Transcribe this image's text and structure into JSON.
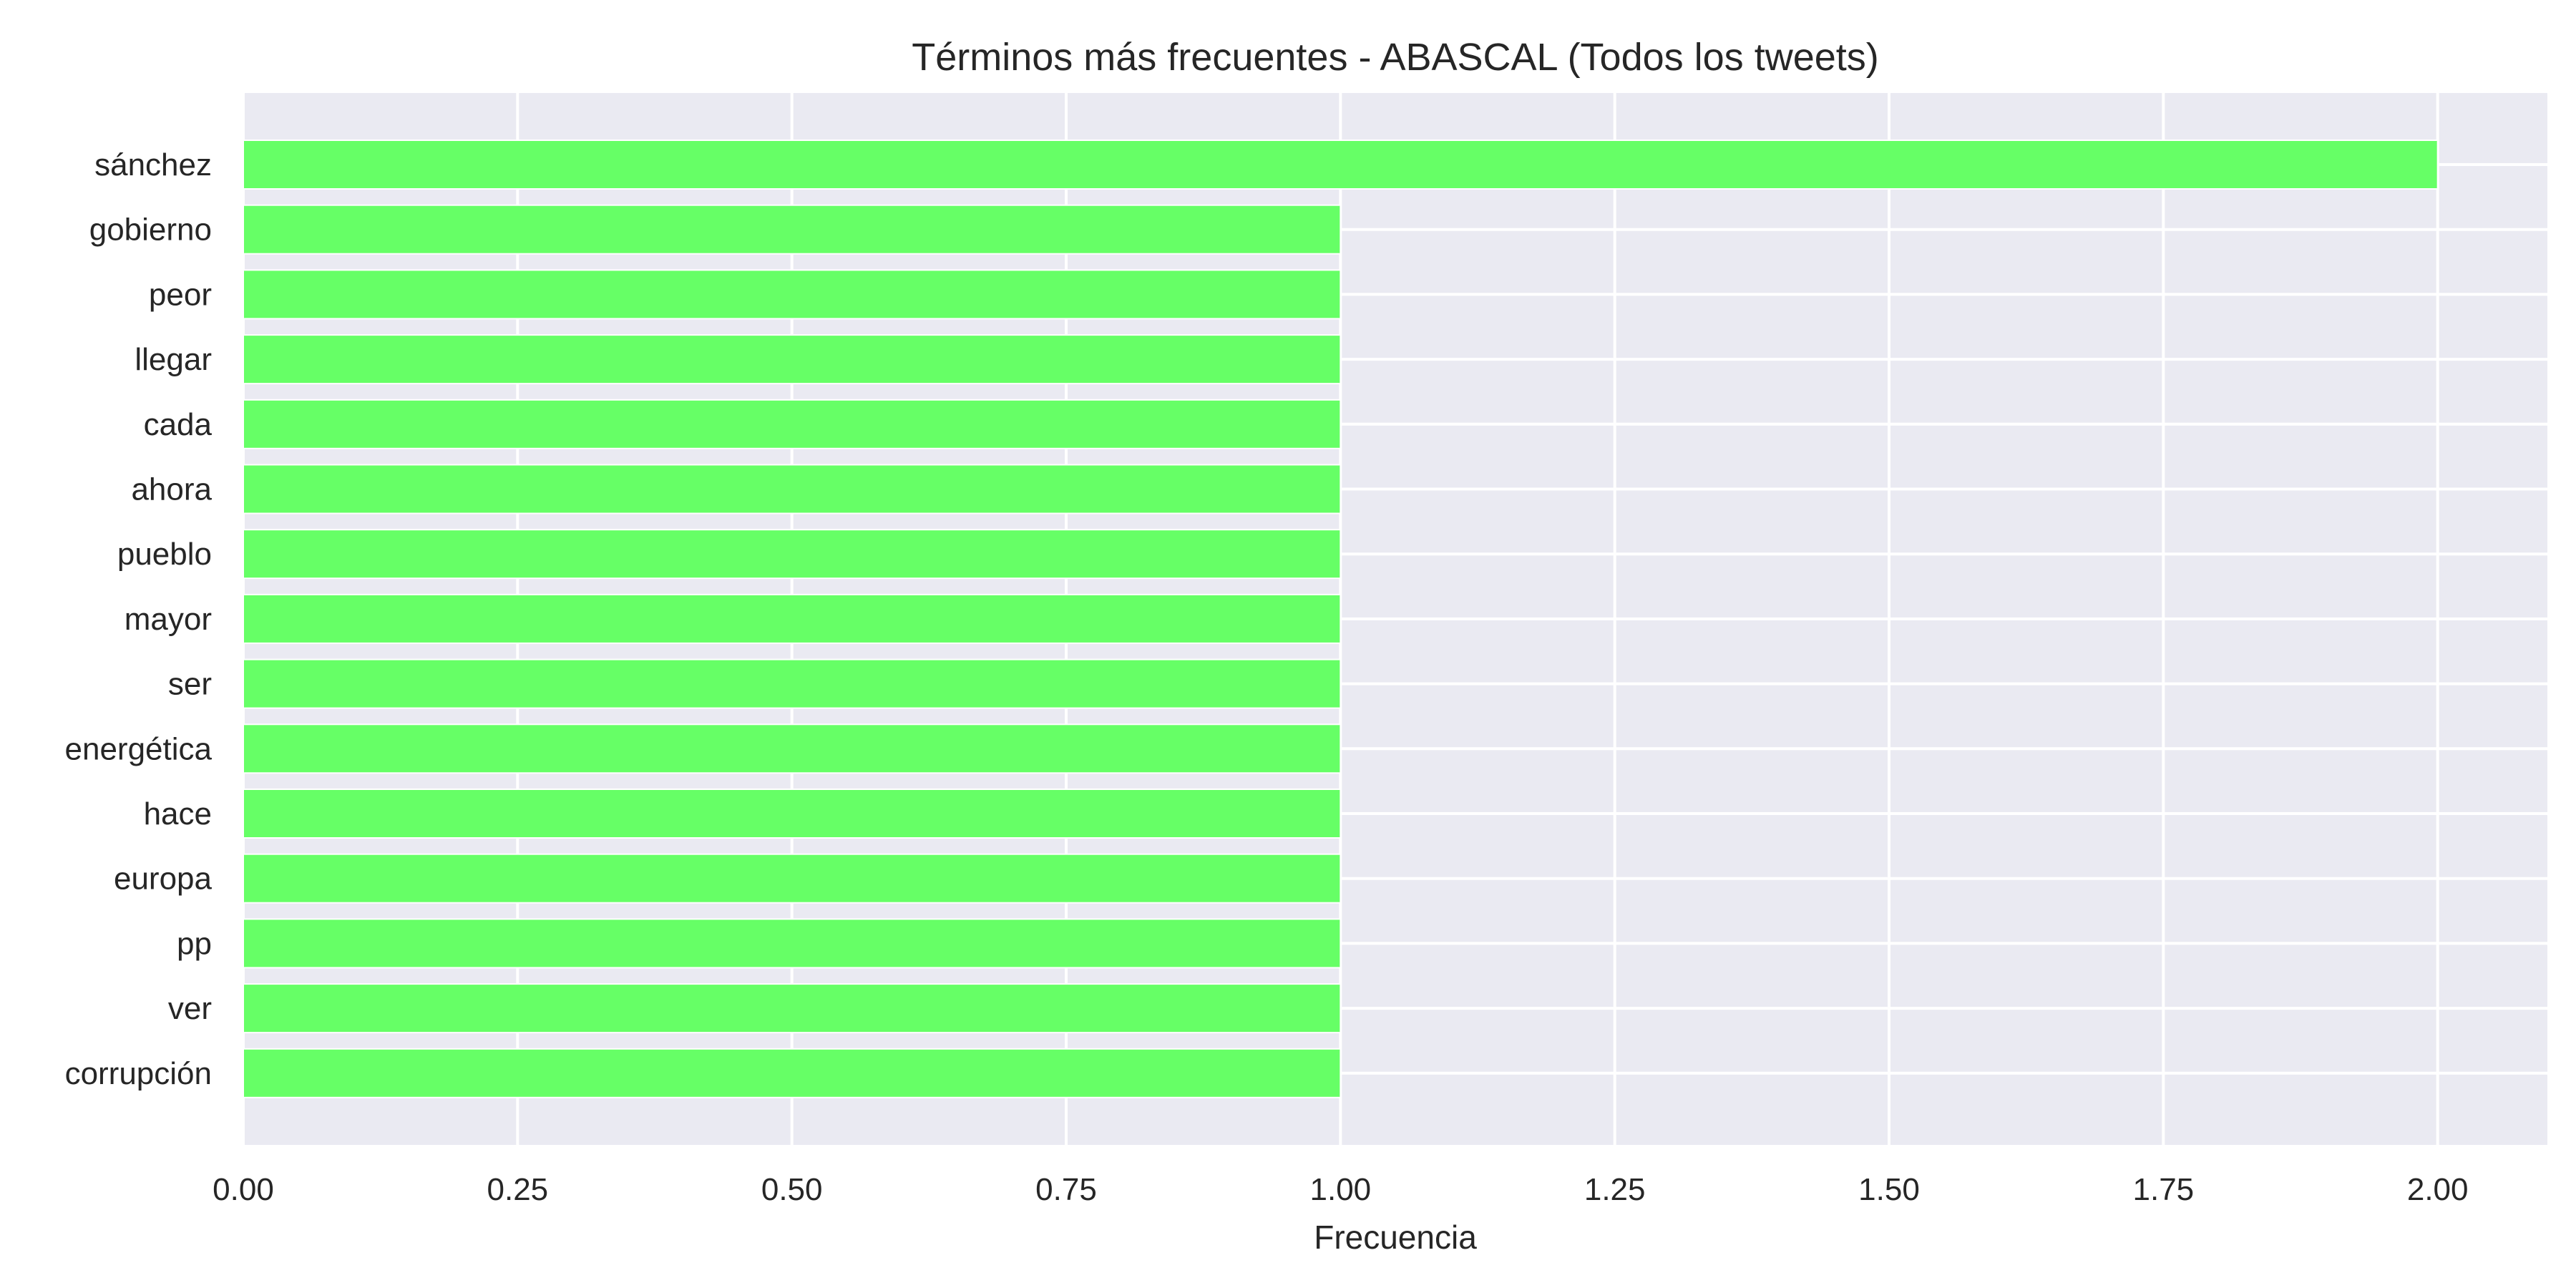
{
  "chart_data": {
    "type": "bar",
    "orientation": "horizontal",
    "title": "Términos más frecuentes - ABASCAL (Todos los tweets)",
    "xlabel": "Frecuencia",
    "ylabel": "",
    "categories": [
      "sánchez",
      "gobierno",
      "peor",
      "llegar",
      "cada",
      "ahora",
      "pueblo",
      "mayor",
      "ser",
      "energética",
      "hace",
      "europa",
      "pp",
      "ver",
      "corrupción"
    ],
    "values": [
      2,
      1,
      1,
      1,
      1,
      1,
      1,
      1,
      1,
      1,
      1,
      1,
      1,
      1,
      1
    ],
    "xlim": [
      0,
      2.1
    ],
    "xticks": [
      "0.00",
      "0.25",
      "0.50",
      "0.75",
      "1.00",
      "1.25",
      "1.50",
      "1.75",
      "2.00"
    ],
    "grid": true,
    "colors": {
      "bar": "#66ff66",
      "plot_background": "#eaeaf2",
      "grid": "#ffffff",
      "text": "#262626"
    }
  }
}
